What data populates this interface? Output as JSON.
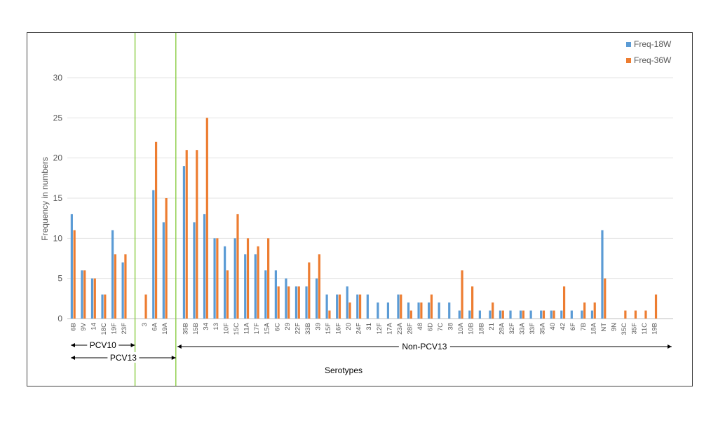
{
  "chart_data": {
    "type": "bar",
    "title": "",
    "xlabel": "Serotypes",
    "ylabel": "Frequency in numbers",
    "ylim": [
      0,
      35
    ],
    "yticks": [
      0,
      5,
      10,
      15,
      20,
      25,
      30
    ],
    "grid": true,
    "legend_position": "top-right",
    "categories": [
      "6B",
      "9V",
      "14",
      "18C",
      "19F",
      "23F",
      "",
      "3",
      "6A",
      "19A",
      "",
      "35B",
      "15B",
      "34",
      "13",
      "10F",
      "15C",
      "11A",
      "17F",
      "15A",
      "6C",
      "29",
      "22F",
      "33B",
      "39",
      "15F",
      "16F",
      "20",
      "24F",
      "31",
      "12F",
      "17A",
      "23A",
      "28F",
      "48",
      "6D",
      "7C",
      "38",
      "10A",
      "10B",
      "18B",
      "21",
      "28A",
      "32F",
      "33A",
      "33F",
      "35A",
      "40",
      "42",
      "6F",
      "7B",
      "18A",
      "NT",
      "9N",
      "35C",
      "35F",
      "11C",
      "19B"
    ],
    "series": [
      {
        "name": "Freq-18W",
        "color": "#5B9BD5",
        "values": [
          13,
          6,
          5,
          3,
          11,
          7,
          null,
          0,
          16,
          12,
          null,
          19,
          12,
          13,
          10,
          9,
          10,
          8,
          8,
          6,
          6,
          5,
          4,
          4,
          5,
          3,
          3,
          4,
          3,
          3,
          2,
          2,
          3,
          2,
          2,
          2,
          2,
          2,
          1,
          1,
          1,
          1,
          1,
          1,
          1,
          1,
          1,
          1,
          1,
          1,
          1,
          1,
          11,
          0,
          0,
          0,
          0,
          0
        ]
      },
      {
        "name": "Freq-36W",
        "color": "#ED7D31",
        "values": [
          11,
          6,
          5,
          3,
          8,
          8,
          null,
          3,
          22,
          15,
          null,
          21,
          21,
          25,
          10,
          6,
          13,
          10,
          9,
          10,
          4,
          4,
          4,
          7,
          8,
          1,
          3,
          2,
          3,
          0,
          0,
          0,
          3,
          1,
          2,
          3,
          0,
          0,
          6,
          4,
          0,
          2,
          1,
          0,
          1,
          0,
          1,
          1,
          4,
          0,
          2,
          2,
          5,
          0,
          1,
          1,
          1,
          3
        ]
      }
    ],
    "annotations": [
      {
        "label": "PCV10"
      },
      {
        "label": "PCV13"
      },
      {
        "label": "Non-PCV13"
      }
    ]
  }
}
